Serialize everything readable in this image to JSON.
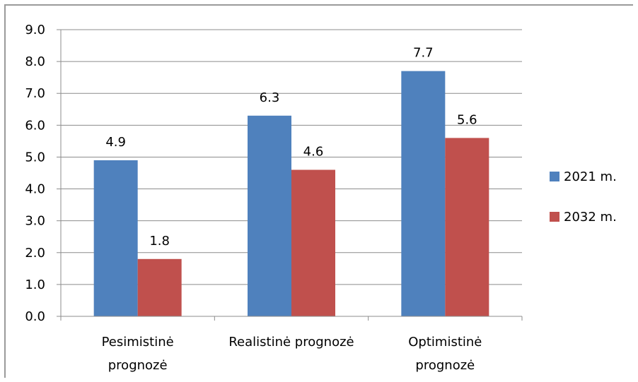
{
  "chart_data": {
    "type": "bar",
    "title": "",
    "xlabel": "",
    "ylabel": "",
    "ylim": [
      0,
      9
    ],
    "ytick_step": 1,
    "ytick_labels": [
      "0.0",
      "1.0",
      "2.0",
      "3.0",
      "4.0",
      "5.0",
      "6.0",
      "7.0",
      "8.0",
      "9.0"
    ],
    "grid": true,
    "legend_position": "right",
    "categories": [
      [
        "Pesimistinė",
        "prognozė"
      ],
      [
        "Realistinė prognozė"
      ],
      [
        "Optimistinė",
        "prognozė"
      ]
    ],
    "series": [
      {
        "name": "2021 m.",
        "color": "#4f81bd",
        "values": [
          4.9,
          6.3,
          7.7
        ],
        "labels": [
          "4.9",
          "6.3",
          "7.7"
        ]
      },
      {
        "name": "2032 m.",
        "color": "#c0504d",
        "values": [
          1.8,
          4.6,
          5.6
        ],
        "labels": [
          "1.8",
          "4.6",
          "5.6"
        ]
      }
    ]
  }
}
